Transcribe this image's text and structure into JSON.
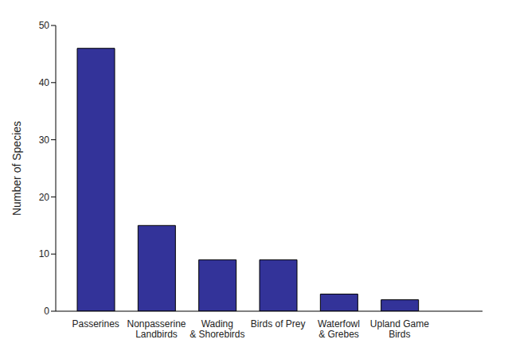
{
  "chart_data": {
    "type": "bar",
    "y_label": "Number of Species",
    "categories": [
      "Passerines",
      "Nonpasserine\nLandbirds",
      "Wading\n& Shorebirds",
      "Birds of Prey",
      "Waterfowl\n& Grebes",
      "Upland Game\nBirds"
    ],
    "values": [
      46,
      15,
      9,
      9,
      3,
      2
    ],
    "color": "#333399",
    "ylim": [
      0,
      50
    ],
    "yticks": [
      0,
      10,
      20,
      30,
      40,
      50
    ],
    "grid": false
  }
}
